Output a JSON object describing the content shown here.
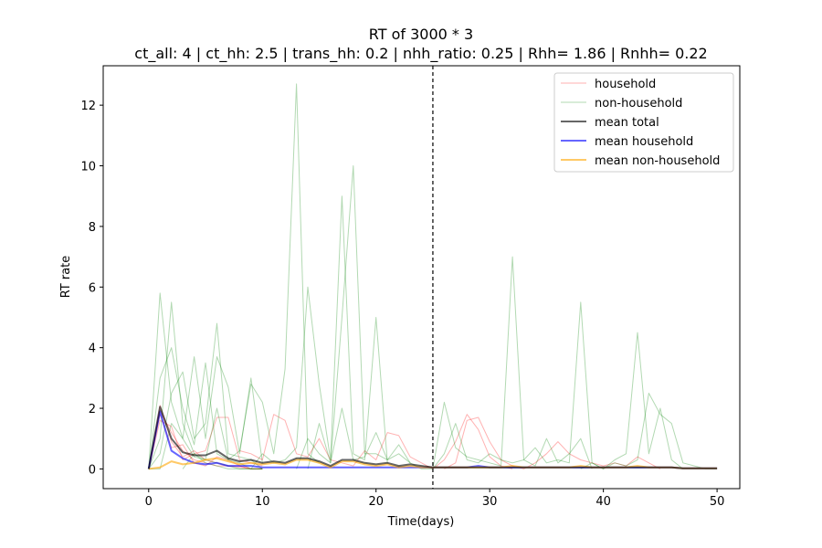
{
  "chart_data": {
    "type": "line",
    "title": "RT of 3000 * 3",
    "subtitle": "ct_all: 4 | ct_hh: 2.5 | trans_hh: 0.2 | nhh_ratio: 0.25 | Rhh= 1.86 | Rnhh= 0.22",
    "xlabel": "Time(days)",
    "ylabel": "RT rate",
    "xlim": [
      -4,
      52
    ],
    "ylim": [
      -0.65,
      13.3
    ],
    "xticks": [
      0,
      10,
      20,
      30,
      40,
      50
    ],
    "yticks": [
      0,
      2,
      4,
      6,
      8,
      10,
      12
    ],
    "grid": false,
    "legend_position": "upper right",
    "vline": {
      "x": 25,
      "style": "dashed",
      "color": "#000000"
    },
    "legend": [
      {
        "label": "household",
        "color": "#ff0000",
        "alpha": 0.3,
        "width": 1
      },
      {
        "label": "non-household",
        "color": "#008000",
        "alpha": 0.3,
        "width": 1
      },
      {
        "label": "mean total",
        "color": "#000000",
        "alpha": 0.6,
        "width": 2
      },
      {
        "label": "mean household",
        "color": "#0000ff",
        "alpha": 0.6,
        "width": 2
      },
      {
        "label": "mean non-household",
        "color": "#ffa500",
        "alpha": 0.6,
        "width": 2
      }
    ],
    "household_series": [
      {
        "x": [
          0,
          1,
          2,
          3,
          4,
          5,
          6,
          7,
          8,
          9,
          10
        ],
        "y": [
          0,
          1.9,
          1.2,
          0.6,
          0.3,
          0.2,
          0.1,
          0.1,
          0.05,
          0,
          0
        ]
      },
      {
        "x": [
          0,
          1,
          2,
          3,
          4,
          5,
          6,
          7,
          8,
          9,
          10
        ],
        "y": [
          0,
          2.1,
          0.9,
          0.4,
          0.6,
          0.3,
          0.2,
          0.1,
          0.1,
          0,
          0
        ]
      },
      {
        "x": [
          0,
          1,
          2,
          3,
          4,
          5,
          6,
          7,
          8,
          9,
          10
        ],
        "y": [
          0,
          1.6,
          1.4,
          0.3,
          0.5,
          0.6,
          1.7,
          1.7,
          0.3,
          0.2,
          0.1
        ]
      },
      {
        "x": [
          0,
          1,
          2,
          3,
          4,
          5,
          6,
          7,
          8,
          9,
          10
        ],
        "y": [
          0,
          1.8,
          0.7,
          0.8,
          0.2,
          0.1,
          0.4,
          0.3,
          0.1,
          0,
          0
        ]
      },
      {
        "x": [
          8,
          9,
          10,
          11,
          12,
          13,
          14,
          15,
          16,
          17,
          18,
          19,
          20,
          21,
          22,
          23,
          24,
          25
        ],
        "y": [
          0.6,
          0.5,
          0.3,
          1.8,
          1.6,
          0.5,
          0.4,
          1.0,
          0.3,
          0.2,
          0.1,
          0.6,
          0.3,
          1.2,
          1.1,
          0.4,
          0.2,
          0.0
        ]
      },
      {
        "x": [
          25,
          26,
          27,
          28,
          29,
          30,
          31,
          32
        ],
        "y": [
          0,
          0.3,
          0.9,
          1.8,
          1.3,
          0.4,
          0.1,
          0
        ]
      },
      {
        "x": [
          26,
          27,
          28,
          29,
          30,
          31,
          32,
          33
        ],
        "y": [
          0,
          0.2,
          1.6,
          1.7,
          0.9,
          0.3,
          0.1,
          0
        ]
      },
      {
        "x": [
          33,
          34,
          35,
          36,
          37,
          38,
          39,
          40,
          41,
          42,
          43,
          44,
          45
        ],
        "y": [
          0,
          0.2,
          0.5,
          0.9,
          0.5,
          0.3,
          0.2,
          0.1,
          0.2,
          0.1,
          0.4,
          0.2,
          0
        ]
      }
    ],
    "nonhousehold_series": [
      {
        "x": [
          0,
          1,
          2,
          3,
          4,
          5,
          6,
          7,
          8,
          9,
          10
        ],
        "y": [
          0,
          5.8,
          2.2,
          1.0,
          0.4,
          0.3,
          0.2,
          0.1,
          0,
          0,
          0
        ]
      },
      {
        "x": [
          0,
          1,
          2,
          3,
          4,
          5,
          6,
          7,
          8,
          9,
          10
        ],
        "y": [
          0,
          1.0,
          5.5,
          1.5,
          0.5,
          0.2,
          0.1,
          0,
          0,
          0,
          0
        ]
      },
      {
        "x": [
          0,
          1,
          2,
          3,
          4,
          5,
          6,
          7,
          8,
          9,
          10
        ],
        "y": [
          0,
          3.0,
          4.0,
          2.0,
          0.8,
          3.5,
          0.5,
          0.3,
          0.2,
          0,
          0
        ]
      },
      {
        "x": [
          0,
          1,
          2,
          3,
          4,
          5,
          6,
          7,
          8,
          9,
          10
        ],
        "y": [
          0,
          0.5,
          2.5,
          3.2,
          1.0,
          1.5,
          4.8,
          0.5,
          0.4,
          0.3,
          0
        ]
      },
      {
        "x": [
          0,
          1,
          2,
          3,
          4,
          5,
          6,
          7,
          8,
          9,
          10
        ],
        "y": [
          0,
          0,
          1.5,
          1.0,
          3.7,
          1.0,
          3.7,
          2.7,
          0.5,
          3.0,
          0.2
        ]
      },
      {
        "x": [
          3,
          4,
          5,
          6,
          7,
          8,
          9,
          10,
          11,
          12,
          13,
          14,
          15
        ],
        "y": [
          0,
          0.5,
          0.3,
          2.0,
          0.3,
          0.6,
          2.8,
          2.2,
          0.5,
          3.3,
          12.7,
          0.5,
          0.2
        ]
      },
      {
        "x": [
          9,
          10,
          11,
          12,
          13,
          14,
          15,
          16,
          17,
          18,
          19,
          20,
          21
        ],
        "y": [
          0,
          0.5,
          0.2,
          0.3,
          0.7,
          6.0,
          2.8,
          0.3,
          9.0,
          0.5,
          0.3,
          5.0,
          0.2
        ]
      },
      {
        "x": [
          13,
          14,
          15,
          16,
          17,
          18,
          19,
          20,
          21,
          22,
          23
        ],
        "y": [
          0,
          1.0,
          0.5,
          0.2,
          5.0,
          10.0,
          0.5,
          0.5,
          0.3,
          0.8,
          0.2
        ]
      },
      {
        "x": [
          14,
          15,
          16,
          17,
          18,
          19,
          20,
          21,
          22,
          23,
          24
        ],
        "y": [
          0,
          1.5,
          0.2,
          2.0,
          0.3,
          0.4,
          1.2,
          0.3,
          0.5,
          0.2,
          0
        ]
      },
      {
        "x": [
          24,
          25,
          26,
          27,
          28,
          29,
          30,
          31,
          32,
          33,
          34,
          35,
          36,
          37,
          38,
          39,
          40
        ],
        "y": [
          0,
          0,
          2.2,
          0.7,
          0.4,
          0.3,
          0.2,
          0.1,
          7.0,
          0.3,
          0.7,
          0.2,
          0.3,
          0.2,
          5.5,
          0.2,
          0
        ]
      },
      {
        "x": [
          25,
          26,
          27,
          28,
          29,
          30,
          31,
          32,
          33,
          34,
          35,
          36,
          37,
          38,
          39
        ],
        "y": [
          0,
          0.5,
          1.5,
          0.3,
          0.2,
          0.5,
          0.3,
          0.2,
          0.3,
          0.1,
          1.0,
          0.2,
          0.5,
          1.0,
          0
        ]
      },
      {
        "x": [
          38,
          39,
          40,
          41,
          42,
          43,
          44,
          45,
          46,
          47
        ],
        "y": [
          0,
          0.2,
          0,
          0.3,
          0.5,
          4.5,
          0.5,
          2.0,
          0.3,
          0
        ]
      },
      {
        "x": [
          40,
          41,
          42,
          43,
          44,
          45,
          46,
          47,
          48,
          49,
          50
        ],
        "y": [
          0,
          0.2,
          0.1,
          0.3,
          2.5,
          1.8,
          1.5,
          0.2,
          0.1,
          0,
          0
        ]
      }
    ],
    "mean_total": {
      "x": [
        0,
        1,
        2,
        3,
        4,
        5,
        6,
        7,
        8,
        9,
        10,
        11,
        12,
        13,
        14,
        15,
        16,
        17,
        18,
        19,
        20,
        21,
        22,
        23,
        24,
        25,
        26,
        27,
        28,
        29,
        30,
        31,
        32,
        33,
        34,
        35,
        36,
        37,
        38,
        39,
        40,
        41,
        42,
        43,
        44,
        45,
        46,
        47,
        48,
        49,
        50
      ],
      "y": [
        0,
        2.05,
        1.0,
        0.55,
        0.45,
        0.45,
        0.6,
        0.35,
        0.25,
        0.3,
        0.2,
        0.25,
        0.2,
        0.35,
        0.35,
        0.25,
        0.1,
        0.3,
        0.3,
        0.2,
        0.15,
        0.2,
        0.1,
        0.15,
        0.1,
        0.05,
        0.05,
        0.05,
        0.05,
        0.05,
        0.05,
        0.05,
        0.05,
        0.05,
        0.05,
        0.05,
        0.05,
        0.05,
        0.05,
        0.05,
        0.05,
        0.05,
        0.05,
        0.05,
        0.05,
        0.05,
        0.05,
        0.02,
        0.02,
        0.02,
        0.02
      ]
    },
    "mean_household": {
      "x": [
        0,
        1,
        2,
        3,
        4,
        5,
        6,
        7,
        8,
        9,
        10,
        11,
        12,
        13,
        14,
        15,
        16,
        17,
        18,
        19,
        20,
        21,
        22,
        23,
        24,
        25,
        26,
        27,
        28,
        29,
        30,
        31,
        32,
        33,
        34,
        35,
        36,
        37,
        38,
        39,
        40,
        41,
        42,
        43,
        44,
        45,
        46,
        47,
        48,
        49,
        50
      ],
      "y": [
        0,
        1.9,
        0.6,
        0.35,
        0.2,
        0.15,
        0.2,
        0.1,
        0.1,
        0.1,
        0.05,
        0.05,
        0.05,
        0.05,
        0.05,
        0.05,
        0.05,
        0.05,
        0.05,
        0.05,
        0.05,
        0.05,
        0.05,
        0.05,
        0.05,
        0.05,
        0.05,
        0.05,
        0.05,
        0.1,
        0.05,
        0.05,
        0.05,
        0.05,
        0.05,
        0.05,
        0.05,
        0.05,
        0.05,
        0.05,
        0.05,
        0.05,
        0.05,
        0.05,
        0.05,
        0.05,
        0.05,
        0.02,
        0.02,
        0.02,
        0.02
      ]
    },
    "mean_nonhousehold": {
      "x": [
        0,
        1,
        2,
        3,
        4,
        5,
        6,
        7,
        8,
        9,
        10,
        11,
        12,
        13,
        14,
        15,
        16,
        17,
        18,
        19,
        20,
        21,
        22,
        23,
        24,
        25,
        26,
        27,
        28,
        29,
        30,
        31,
        32,
        33,
        34,
        35,
        36,
        37,
        38,
        39,
        40,
        41,
        42,
        43,
        44,
        45,
        46,
        47,
        48,
        49,
        50
      ],
      "y": [
        0,
        0.05,
        0.25,
        0.15,
        0.2,
        0.3,
        0.35,
        0.25,
        0.15,
        0.2,
        0.15,
        0.2,
        0.15,
        0.3,
        0.3,
        0.2,
        0.05,
        0.25,
        0.25,
        0.15,
        0.1,
        0.15,
        0.05,
        0.1,
        0.05,
        0.05,
        0.05,
        0.05,
        0.05,
        0.05,
        0.05,
        0.05,
        0.1,
        0.05,
        0.05,
        0.05,
        0.05,
        0.05,
        0.1,
        0.05,
        0.05,
        0.05,
        0.05,
        0.1,
        0.05,
        0.05,
        0.05,
        0.02,
        0.02,
        0.02,
        0.02
      ]
    }
  }
}
